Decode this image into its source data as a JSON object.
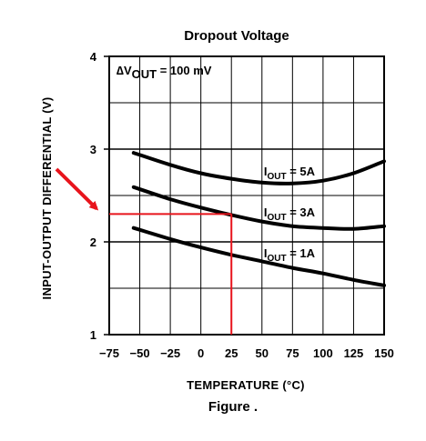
{
  "chart_data": {
    "type": "line",
    "title": "Dropout Voltage",
    "caption": "Figure .",
    "xlabel": "TEMPERATURE (°C)",
    "ylabel": "INPUT-OUTPUT DIFFERENTIAL (V)",
    "condition": {
      "prefix": "∆V",
      "sub": "OUT",
      "suffix": " = 100 mV"
    },
    "xlim": [
      -75,
      150
    ],
    "ylim": [
      1,
      4
    ],
    "x_ticks": [
      -75,
      -50,
      -25,
      0,
      25,
      50,
      75,
      100,
      125,
      150
    ],
    "x_tick_labels": [
      "−75",
      "−50",
      "−25",
      "0",
      "25",
      "50",
      "75",
      "100",
      "125",
      "150"
    ],
    "y_ticks": [
      1,
      2,
      3,
      4
    ],
    "y_tick_labels": [
      "1",
      "2",
      "3",
      "4"
    ],
    "grid": true,
    "series": [
      {
        "name": "IOUT = 5A",
        "label": {
          "main": "I",
          "sub": "OUT",
          "rest": " = 5A"
        },
        "x": [
          -55,
          -25,
          0,
          25,
          50,
          75,
          100,
          125,
          150
        ],
        "y": [
          2.96,
          2.83,
          2.74,
          2.68,
          2.64,
          2.63,
          2.66,
          2.74,
          2.87
        ]
      },
      {
        "name": "IOUT = 3A",
        "label": {
          "main": "I",
          "sub": "OUT",
          "rest": " = 3A"
        },
        "x": [
          -55,
          -25,
          0,
          25,
          50,
          75,
          100,
          125,
          150
        ],
        "y": [
          2.59,
          2.46,
          2.37,
          2.29,
          2.22,
          2.17,
          2.15,
          2.14,
          2.17
        ]
      },
      {
        "name": "IOUT = 1A",
        "label": {
          "main": "I",
          "sub": "OUT",
          "rest": " = 1A"
        },
        "x": [
          -55,
          -25,
          0,
          25,
          50,
          75,
          100,
          125,
          150
        ],
        "y": [
          2.15,
          2.03,
          1.94,
          1.86,
          1.79,
          1.72,
          1.66,
          1.59,
          1.53
        ]
      }
    ],
    "highlight": {
      "x": 25,
      "y": 2.3,
      "color": "#e8141c"
    },
    "line_color": "#000000",
    "grid_color": "#000000"
  }
}
